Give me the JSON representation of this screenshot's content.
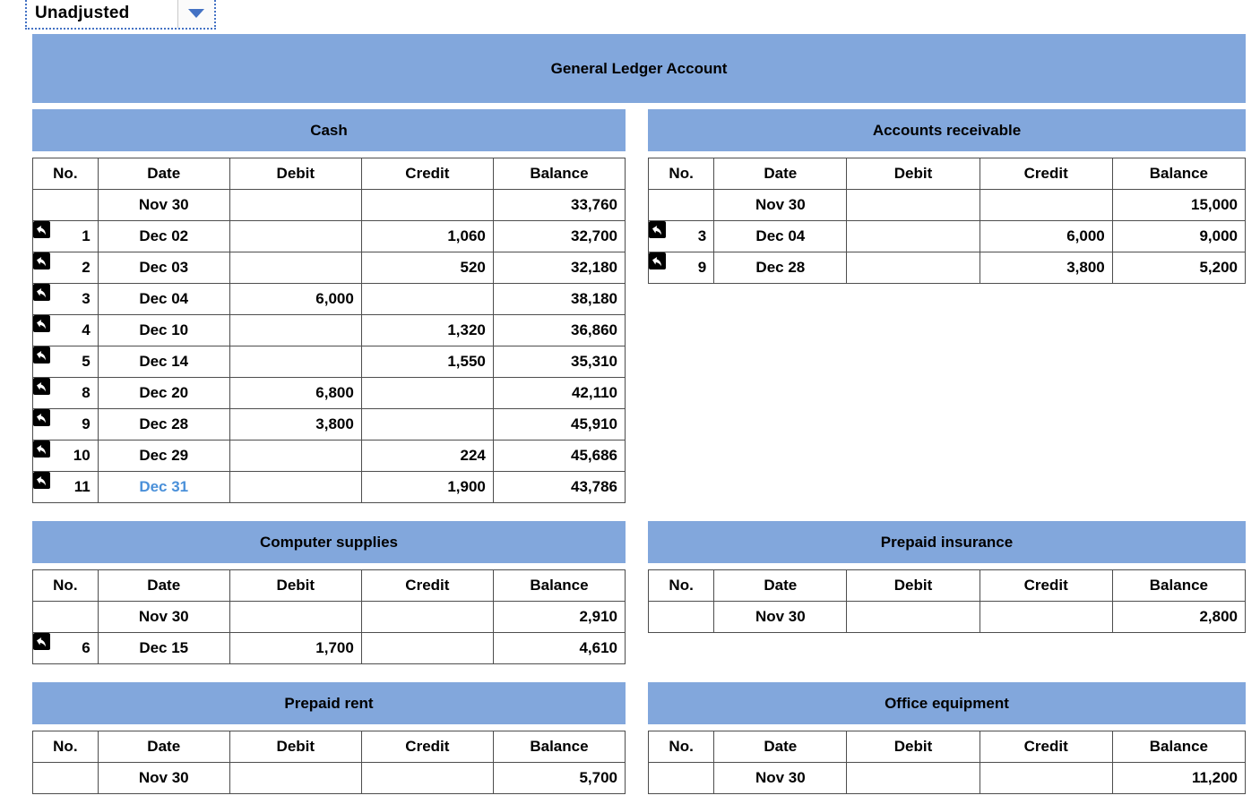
{
  "dropdown": {
    "value": "Unadjusted"
  },
  "banner": {
    "title": "General Ledger Account"
  },
  "columns": [
    "No.",
    "Date",
    "Debit",
    "Credit",
    "Balance"
  ],
  "colors": {
    "header_blue": "#82a7dc",
    "link_blue": "#4a90d9",
    "dropdown_blue": "#4472c4"
  },
  "icons": {
    "row_marker": "reply-arrow",
    "dropdown_caret": "caret-down"
  },
  "tables": [
    {
      "title": "Cash",
      "rows": [
        {
          "no": "",
          "date": "Nov 30",
          "debit": "",
          "credit": "",
          "balance": "33,760",
          "icon": false
        },
        {
          "no": "1",
          "date": "Dec 02",
          "debit": "",
          "credit": "1,060",
          "balance": "32,700",
          "icon": true
        },
        {
          "no": "2",
          "date": "Dec 03",
          "debit": "",
          "credit": "520",
          "balance": "32,180",
          "icon": true
        },
        {
          "no": "3",
          "date": "Dec 04",
          "debit": "6,000",
          "credit": "",
          "balance": "38,180",
          "icon": true
        },
        {
          "no": "4",
          "date": "Dec 10",
          "debit": "",
          "credit": "1,320",
          "balance": "36,860",
          "icon": true
        },
        {
          "no": "5",
          "date": "Dec 14",
          "debit": "",
          "credit": "1,550",
          "balance": "35,310",
          "icon": true
        },
        {
          "no": "8",
          "date": "Dec 20",
          "debit": "6,800",
          "credit": "",
          "balance": "42,110",
          "icon": true
        },
        {
          "no": "9",
          "date": "Dec 28",
          "debit": "3,800",
          "credit": "",
          "balance": "45,910",
          "icon": true
        },
        {
          "no": "10",
          "date": "Dec 29",
          "debit": "",
          "credit": "224",
          "balance": "45,686",
          "icon": true
        },
        {
          "no": "11",
          "date": "Dec 31",
          "debit": "",
          "credit": "1,900",
          "balance": "43,786",
          "icon": true,
          "date_link": true
        }
      ]
    },
    {
      "title": "Accounts receivable",
      "rows": [
        {
          "no": "",
          "date": "Nov 30",
          "debit": "",
          "credit": "",
          "balance": "15,000",
          "icon": false
        },
        {
          "no": "3",
          "date": "Dec 04",
          "debit": "",
          "credit": "6,000",
          "balance": "9,000",
          "icon": true
        },
        {
          "no": "9",
          "date": "Dec 28",
          "debit": "",
          "credit": "3,800",
          "balance": "5,200",
          "icon": true
        }
      ]
    },
    {
      "title": "Computer supplies",
      "rows": [
        {
          "no": "",
          "date": "Nov 30",
          "debit": "",
          "credit": "",
          "balance": "2,910",
          "icon": false
        },
        {
          "no": "6",
          "date": "Dec 15",
          "debit": "1,700",
          "credit": "",
          "balance": "4,610",
          "icon": true
        }
      ]
    },
    {
      "title": "Prepaid insurance",
      "rows": [
        {
          "no": "",
          "date": "Nov 30",
          "debit": "",
          "credit": "",
          "balance": "2,800",
          "icon": false
        }
      ]
    },
    {
      "title": "Prepaid rent",
      "rows": [
        {
          "no": "",
          "date": "Nov 30",
          "debit": "",
          "credit": "",
          "balance": "5,700",
          "icon": false
        }
      ]
    },
    {
      "title": "Office equipment",
      "rows": [
        {
          "no": "",
          "date": "Nov 30",
          "debit": "",
          "credit": "",
          "balance": "11,200",
          "icon": false
        }
      ]
    }
  ]
}
